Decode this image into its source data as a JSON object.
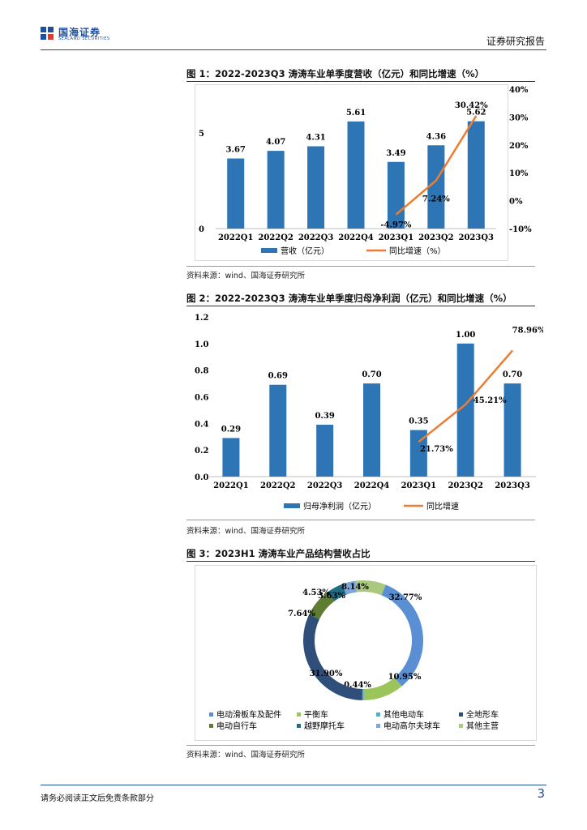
{
  "header": {
    "logo_cn": "国海证券",
    "logo_en": "SEALAND SECURITIES",
    "doc_type": "证券研究报告"
  },
  "figure1": {
    "title": "图 1：2022-2023Q3 涛涛车业单季度营收（亿元）和同比增速（%）",
    "source": "资料来源：wind、国海证券研究所"
  },
  "figure2": {
    "title": "图 2：2022-2023Q3 涛涛车业单季度归母净利润（亿元）和同比增速（%）",
    "source": "资料来源：wind、国海证券研究所"
  },
  "figure3": {
    "title": "图 3：2023H1 涛涛车业产品结构营收占比",
    "source": "资料来源：wind、国海证券研究所"
  },
  "footer": {
    "note": "请务必阅读正文后免责条款部分",
    "page": "3"
  },
  "colors": {
    "bar": "#2e75b6",
    "line": "#ed7d31",
    "brand": "#1f4e9c"
  },
  "chart_data": [
    {
      "type": "bar",
      "categories": [
        "2022Q1",
        "2022Q2",
        "2022Q3",
        "2022Q4",
        "2023Q1",
        "2023Q2",
        "2023Q3"
      ],
      "series": [
        {
          "name": "营收（亿元）",
          "type": "bar",
          "axis": "left",
          "values": [
            3.67,
            4.07,
            4.31,
            5.61,
            3.49,
            4.36,
            5.62
          ],
          "labels": [
            "3.67",
            "4.07",
            "4.31",
            "5.61",
            "3.49",
            "4.36",
            "5.62"
          ]
        },
        {
          "name": "同比增速（%）",
          "type": "line",
          "axis": "right",
          "values": [
            null,
            null,
            null,
            null,
            -4.97,
            7.24,
            30.42
          ],
          "labels": [
            null,
            null,
            null,
            null,
            "-4.97%",
            "7.24%",
            "30.42%"
          ]
        }
      ],
      "left_ticks": [
        "0",
        "5"
      ],
      "ylim_left": [
        0,
        7.3
      ],
      "right_ticks": [
        "-10%",
        "0%",
        "10%",
        "20%",
        "30%",
        "40%"
      ],
      "ylim_right": [
        -10,
        40
      ],
      "grid": false,
      "legend": "bottom"
    },
    {
      "type": "bar",
      "categories": [
        "2022Q1",
        "2022Q2",
        "2022Q3",
        "2022Q4",
        "2023Q1",
        "2023Q2",
        "2023Q3"
      ],
      "series": [
        {
          "name": "归母净利润（亿元）",
          "type": "bar",
          "axis": "left",
          "values": [
            0.29,
            0.69,
            0.39,
            0.7,
            0.35,
            1.0,
            0.7
          ],
          "labels": [
            "0.29",
            "0.69",
            "0.39",
            "0.70",
            "0.35",
            "1.00",
            "0.70"
          ]
        },
        {
          "name": "同比增速",
          "type": "line",
          "axis": "right",
          "values": [
            null,
            null,
            null,
            null,
            21.73,
            45.21,
            78.96
          ],
          "labels": [
            null,
            null,
            null,
            null,
            "21.73%",
            "45.21%",
            "78.96%"
          ]
        }
      ],
      "left_ticks": [
        "0.0",
        "0.2",
        "0.4",
        "0.6",
        "0.8",
        "1.0",
        "1.2"
      ],
      "ylim_left": [
        0,
        1.2
      ],
      "ylim_right": [
        0,
        100
      ],
      "grid": false,
      "legend": "bottom"
    },
    {
      "type": "pie",
      "donut": true,
      "slices": [
        {
          "name": "电动滑板车及配件",
          "value": 32.77,
          "label": "32.77%",
          "color": "#5b8fd3"
        },
        {
          "name": "平衡车",
          "value": 10.95,
          "label": "10.95%",
          "color": "#9bc45a"
        },
        {
          "name": "其他电动车",
          "value": 0.44,
          "label": "0.44%",
          "color": "#4bb3c8"
        },
        {
          "name": "全地形车",
          "value": 31.9,
          "label": "31.90%",
          "color": "#2f4f7a"
        },
        {
          "name": "电动自行车",
          "value": 7.64,
          "label": "7.64%",
          "color": "#5f7c33"
        },
        {
          "name": "越野摩托车",
          "value": 4.53,
          "label": "4.53%",
          "color": "#1f6e84"
        },
        {
          "name": "电动高尔夫球车",
          "value": 3.63,
          "label": "3.63%",
          "color": "#7ea6d8"
        },
        {
          "name": "其他主营",
          "value": 8.14,
          "label": "8.14%",
          "color": "#a9c97d"
        }
      ],
      "legend": "bottom"
    }
  ]
}
